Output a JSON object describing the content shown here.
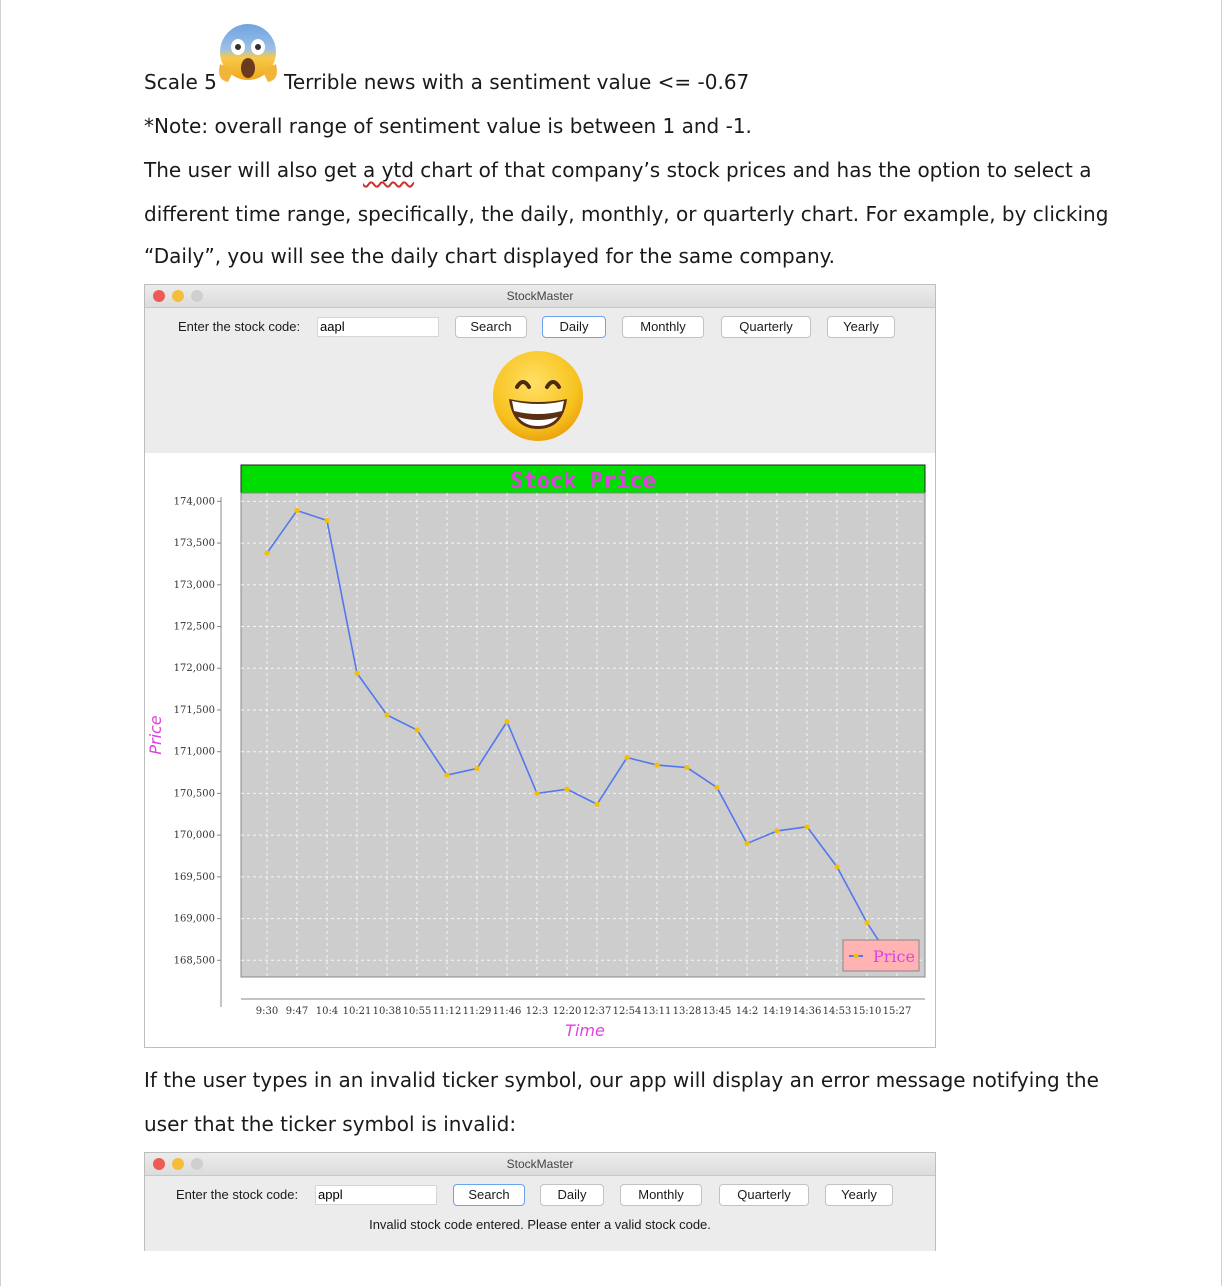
{
  "doc": {
    "scale_label": "Scale 5",
    "scale_desc": "Terrible news with a sentiment value <= -0.67",
    "note": "*Note: overall range of sentiment value is between 1 and -1.",
    "para1_a": "The user will also get ",
    "para1_b": "a ytd",
    "para1_c": " chart of that company’s stock prices and has the option to select a",
    "para1_line2": "different time range, specifically, the daily, monthly, or quarterly chart. For example, by clicking",
    "para1_line3": "“Daily”, you will see the daily chart displayed for the same company.",
    "para2_line1": "If the user types in an invalid ticker symbol, our app will display an error message notifying the",
    "para2_line2": "user that the ticker symbol is invalid:"
  },
  "icons": {
    "shock": "face-screaming-in-fear-icon",
    "grin": "grinning-face-icon"
  },
  "window1": {
    "title": "StockMaster",
    "input_label": "Enter the stock code:",
    "input_value": "aapl",
    "buttons": [
      "Search",
      "Daily",
      "Monthly",
      "Quarterly",
      "Yearly"
    ],
    "active_button": "Daily"
  },
  "window2": {
    "title": "StockMaster",
    "input_label": "Enter the stock code:",
    "input_value": "appl",
    "buttons": [
      "Search",
      "Daily",
      "Monthly",
      "Quarterly",
      "Yearly"
    ],
    "active_button": "Search",
    "error_message": "Invalid stock code entered. Please enter a valid stock code."
  },
  "colors": {
    "title_bg": "#00dd00",
    "title_text": "#e040e0",
    "plot_bg": "#cdcdcd",
    "line": "#5577ee",
    "marker": "#f5c000",
    "legend_bg": "#ffb3b3",
    "axis_label": "#e040e0"
  },
  "chart_data": {
    "type": "line",
    "title": "Stock Price",
    "xlabel": "Time",
    "ylabel": "Price",
    "x": [
      "9:30",
      "9:47",
      "10:4",
      "10:21",
      "10:38",
      "10:55",
      "11:12",
      "11:29",
      "11:46",
      "12:3",
      "12:20",
      "12:37",
      "12:54",
      "13:11",
      "13:28",
      "13:45",
      "14:2",
      "14:19",
      "14:36",
      "14:53",
      "15:10",
      "15:27"
    ],
    "series": [
      {
        "name": "Price",
        "values": [
          173380,
          173890,
          173770,
          171940,
          171440,
          171260,
          170720,
          170800,
          171360,
          170500,
          170550,
          170370,
          170930,
          170840,
          170810,
          170570,
          169900,
          170050,
          170100,
          169620,
          168950,
          168400
        ]
      }
    ],
    "y_ticks": [
      "174,000",
      "173,500",
      "173,000",
      "172,500",
      "172,000",
      "171,500",
      "171,000",
      "170,500",
      "170,000",
      "169,500",
      "169,000",
      "168,500"
    ],
    "ylim": [
      168300,
      174100
    ],
    "grid": true,
    "legend": "bottom-right"
  }
}
